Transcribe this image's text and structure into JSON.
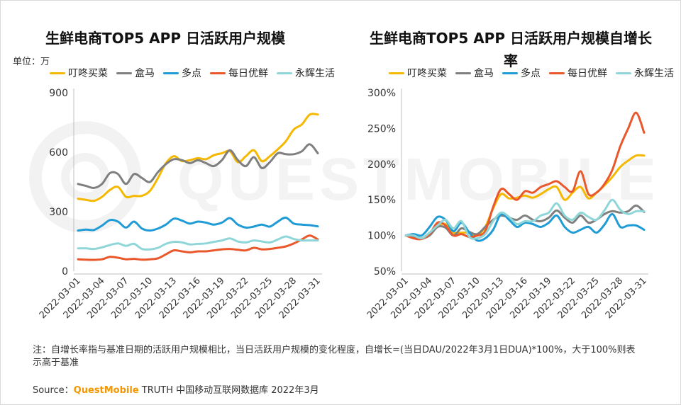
{
  "watermark": "QUESTMOBILE",
  "unit_label": "单位：万",
  "note": "注：自增长率指与基准日期的活跃用户规模相比，当日活跃用户规模的变化程度，自增长=(当日DAU/2022年3月1日DUA)*100%，大于100%则表示高于基准",
  "source": {
    "prefix": "Source：",
    "brand": "QuestMobile",
    "suffix": " TRUTH 中国移动互联网数据库 2022年3月"
  },
  "colors": {
    "叮咚买菜": "#f5b800",
    "盒马": "#7f7f7f",
    "多点": "#1f9bd6",
    "每日优鲜": "#e9572b",
    "永辉生活": "#8fd6d8"
  },
  "chart_data": [
    {
      "type": "line",
      "title": "生鲜电商TOP5 APP 日活跃用户规模",
      "ylabel": "万",
      "ylim": [
        0,
        900
      ],
      "yticks": [
        "0",
        "300",
        "600",
        "900"
      ],
      "x": [
        "2022-03-01",
        "2022-03-02",
        "2022-03-03",
        "2022-03-04",
        "2022-03-05",
        "2022-03-06",
        "2022-03-07",
        "2022-03-08",
        "2022-03-09",
        "2022-03-10",
        "2022-03-11",
        "2022-03-12",
        "2022-03-13",
        "2022-03-14",
        "2022-03-15",
        "2022-03-16",
        "2022-03-17",
        "2022-03-18",
        "2022-03-19",
        "2022-03-20",
        "2022-03-21",
        "2022-03-22",
        "2022-03-23",
        "2022-03-24",
        "2022-03-25",
        "2022-03-26",
        "2022-03-27",
        "2022-03-28",
        "2022-03-29",
        "2022-03-30",
        "2022-03-31"
      ],
      "xticks": [
        "2022-03-01",
        "2022-03-04",
        "2022-03-07",
        "2022-03-10",
        "2022-03-13",
        "2022-03-16",
        "2022-03-19",
        "2022-03-22",
        "2022-03-25",
        "2022-03-28",
        "2022-03-31"
      ],
      "legend_position": "top",
      "grid": false,
      "series": [
        {
          "name": "叮咚买菜",
          "values": [
            365,
            360,
            355,
            375,
            410,
            425,
            375,
            380,
            380,
            405,
            470,
            545,
            580,
            555,
            560,
            570,
            565,
            585,
            595,
            605,
            550,
            580,
            610,
            555,
            580,
            615,
            655,
            715,
            740,
            790,
            790
          ]
        },
        {
          "name": "盒马",
          "values": [
            440,
            430,
            420,
            440,
            495,
            490,
            440,
            490,
            470,
            450,
            500,
            540,
            565,
            560,
            545,
            560,
            545,
            530,
            560,
            610,
            560,
            530,
            575,
            520,
            550,
            595,
            590,
            590,
            605,
            640,
            595
          ]
        },
        {
          "name": "多点",
          "values": [
            205,
            210,
            208,
            230,
            258,
            250,
            220,
            250,
            215,
            205,
            215,
            235,
            265,
            255,
            240,
            250,
            245,
            235,
            245,
            268,
            235,
            220,
            225,
            235,
            225,
            250,
            270,
            240,
            235,
            232,
            226
          ]
        },
        {
          "name": "每日优鲜",
          "values": [
            60,
            58,
            57,
            60,
            72,
            68,
            60,
            62,
            58,
            60,
            65,
            85,
            105,
            100,
            95,
            100,
            100,
            105,
            110,
            112,
            108,
            105,
            118,
            110,
            112,
            118,
            125,
            140,
            160,
            180,
            160
          ]
        },
        {
          "name": "永辉生活",
          "values": [
            115,
            115,
            112,
            120,
            132,
            140,
            128,
            138,
            112,
            110,
            118,
            138,
            148,
            145,
            135,
            138,
            140,
            148,
            155,
            165,
            150,
            145,
            155,
            150,
            145,
            160,
            175,
            162,
            155,
            155,
            155
          ]
        }
      ]
    },
    {
      "type": "line",
      "title": "生鲜电商TOP5 APP 日活跃用户规模自增长率",
      "ylabel": "",
      "ylim": [
        50,
        300
      ],
      "yticks": [
        "50%",
        "100%",
        "150%",
        "200%",
        "250%",
        "300%"
      ],
      "x": [
        "2022-03-01",
        "2022-03-02",
        "2022-03-03",
        "2022-03-04",
        "2022-03-05",
        "2022-03-06",
        "2022-03-07",
        "2022-03-08",
        "2022-03-09",
        "2022-03-10",
        "2022-03-11",
        "2022-03-12",
        "2022-03-13",
        "2022-03-14",
        "2022-03-15",
        "2022-03-16",
        "2022-03-17",
        "2022-03-18",
        "2022-03-19",
        "2022-03-20",
        "2022-03-21",
        "2022-03-22",
        "2022-03-23",
        "2022-03-24",
        "2022-03-25",
        "2022-03-26",
        "2022-03-27",
        "2022-03-28",
        "2022-03-29",
        "2022-03-30",
        "2022-03-31"
      ],
      "xticks": [
        "2022-03-01",
        "2022-03-04",
        "2022-03-07",
        "2022-03-10",
        "2022-03-13",
        "2022-03-16",
        "2022-03-19",
        "2022-03-22",
        "2022-03-25",
        "2022-03-28",
        "2022-03-31"
      ],
      "legend_position": "top",
      "grid": false,
      "series": [
        {
          "name": "叮咚买菜",
          "values": [
            100,
            98,
            96,
            104,
            114,
            116,
            104,
            104,
            104,
            100,
            112,
            138,
            158,
            152,
            153,
            156,
            153,
            158,
            165,
            168,
            150,
            160,
            168,
            152,
            160,
            170,
            182,
            196,
            205,
            212,
            212
          ]
        },
        {
          "name": "盒马",
          "values": [
            100,
            98,
            96,
            100,
            112,
            111,
            100,
            110,
            105,
            102,
            112,
            122,
            128,
            125,
            122,
            128,
            122,
            120,
            125,
            135,
            125,
            118,
            128,
            118,
            122,
            130,
            134,
            132,
            134,
            142,
            133
          ]
        },
        {
          "name": "多点",
          "values": [
            100,
            102,
            100,
            112,
            126,
            122,
            106,
            118,
            104,
            93,
            96,
            108,
            130,
            122,
            112,
            118,
            116,
            112,
            118,
            128,
            112,
            104,
            108,
            112,
            104,
            115,
            130,
            112,
            114,
            114,
            108
          ]
        },
        {
          "name": "每日优鲜",
          "values": [
            100,
            96,
            95,
            102,
            118,
            114,
            100,
            102,
            98,
            100,
            106,
            140,
            165,
            158,
            150,
            162,
            160,
            168,
            172,
            176,
            168,
            162,
            190,
            158,
            160,
            172,
            192,
            225,
            250,
            272,
            244
          ]
        },
        {
          "name": "永辉生活",
          "values": [
            100,
            100,
            96,
            104,
            114,
            122,
            110,
            120,
            98,
            96,
            102,
            120,
            132,
            126,
            116,
            120,
            120,
            128,
            132,
            145,
            128,
            122,
            132,
            126,
            122,
            135,
            150,
            136,
            130,
            134,
            134
          ]
        }
      ]
    }
  ]
}
